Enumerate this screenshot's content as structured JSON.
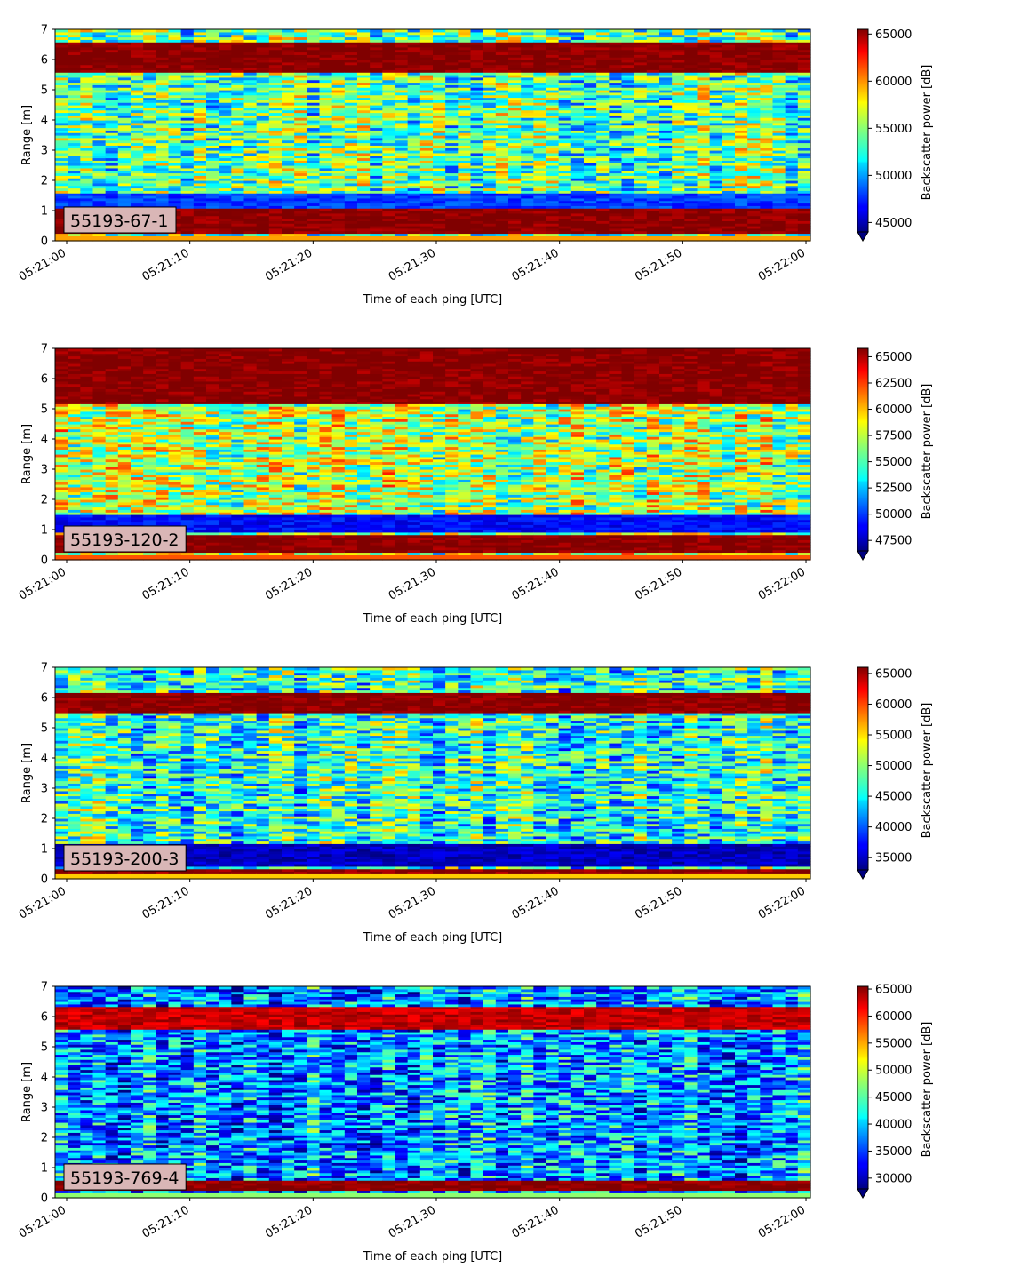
{
  "chart_data": [
    {
      "type": "heatmap",
      "annotation": "55193-67-1",
      "xlabel": "Time of each ping [UTC]",
      "ylabel": "Range [m]",
      "x_ticks": [
        "05:21:00",
        "05:21:10",
        "05:21:20",
        "05:21:30",
        "05:21:40",
        "05:21:50",
        "05:22:00"
      ],
      "y_ticks": [
        "0",
        "1",
        "2",
        "3",
        "4",
        "5",
        "6",
        "7"
      ],
      "ylim": [
        0,
        7
      ],
      "xlim": [
        "05:21:00",
        "05:22:00"
      ],
      "colorbar": {
        "label": "Backscatter power [dB]",
        "colormap": "jet",
        "vmin": 44000,
        "vmax": 65500,
        "ticks": [
          45000,
          50000,
          55000,
          60000,
          65000
        ],
        "tick_labels": [
          "45000",
          "50000",
          "55000",
          "60000",
          "65000"
        ],
        "extend": "min"
      },
      "features": [
        {
          "range": [
            0.25,
            1.05
          ],
          "level": 65500,
          "note": "strong near-field band"
        },
        {
          "range": [
            1.1,
            1.6
          ],
          "level": 48000,
          "note": "weak layer"
        },
        {
          "range": [
            5.6,
            6.6
          ],
          "level": 65500,
          "note": "strong surface band"
        }
      ],
      "background_level": 54000
    },
    {
      "type": "heatmap",
      "annotation": "55193-120-2",
      "xlabel": "Time of each ping [UTC]",
      "ylabel": "Range [m]",
      "x_ticks": [
        "05:21:00",
        "05:21:10",
        "05:21:20",
        "05:21:30",
        "05:21:40",
        "05:21:50",
        "05:22:00"
      ],
      "y_ticks": [
        "0",
        "1",
        "2",
        "3",
        "4",
        "5",
        "6",
        "7"
      ],
      "ylim": [
        0,
        7
      ],
      "xlim": [
        "05:21:00",
        "05:22:00"
      ],
      "colorbar": {
        "label": "Backscatter power [dB]",
        "colormap": "jet",
        "vmin": 46500,
        "vmax": 65800,
        "ticks": [
          47500,
          50000,
          52500,
          55000,
          57500,
          60000,
          62500,
          65000
        ],
        "tick_labels": [
          "47500",
          "50000",
          "52500",
          "55000",
          "57500",
          "60000",
          "62500",
          "65000"
        ],
        "extend": "min"
      },
      "features": [
        {
          "range": [
            0.25,
            0.8
          ],
          "level": 65800,
          "note": "strong near-field band"
        },
        {
          "range": [
            0.9,
            1.5
          ],
          "level": 49000,
          "note": "weak layer"
        },
        {
          "range": [
            5.2,
            7.0
          ],
          "level": 65800,
          "note": "strong surface band"
        }
      ],
      "background_level": 57000
    },
    {
      "type": "heatmap",
      "annotation": "55193-200-3",
      "xlabel": "Time of each ping [UTC]",
      "ylabel": "Range [m]",
      "x_ticks": [
        "05:21:00",
        "05:21:10",
        "05:21:20",
        "05:21:30",
        "05:21:40",
        "05:21:50",
        "05:22:00"
      ],
      "y_ticks": [
        "0",
        "1",
        "2",
        "3",
        "4",
        "5",
        "6",
        "7"
      ],
      "ylim": [
        0,
        7
      ],
      "xlim": [
        "05:21:00",
        "05:22:00"
      ],
      "colorbar": {
        "label": "Backscatter power [dB]",
        "colormap": "jet",
        "vmin": 33000,
        "vmax": 66000,
        "ticks": [
          35000,
          40000,
          45000,
          50000,
          55000,
          60000,
          65000
        ],
        "tick_labels": [
          "35000",
          "40000",
          "45000",
          "50000",
          "55000",
          "60000",
          "65000"
        ],
        "extend": "min"
      },
      "features": [
        {
          "range": [
            0.15,
            0.35
          ],
          "level": 66000,
          "note": "thin strong near-field band"
        },
        {
          "range": [
            0.4,
            1.2
          ],
          "level": 35000,
          "note": "weak layer"
        },
        {
          "range": [
            5.5,
            6.2
          ],
          "level": 66000,
          "note": "strong surface band"
        }
      ],
      "background_level": 47000
    },
    {
      "type": "heatmap",
      "annotation": "55193-769-4",
      "xlabel": "Time of each ping [UTC]",
      "ylabel": "Range [m]",
      "x_ticks": [
        "05:21:00",
        "05:21:10",
        "05:21:20",
        "05:21:30",
        "05:21:40",
        "05:21:50",
        "05:22:00"
      ],
      "y_ticks": [
        "0",
        "1",
        "2",
        "3",
        "4",
        "5",
        "6",
        "7"
      ],
      "ylim": [
        0,
        7
      ],
      "xlim": [
        "05:21:00",
        "05:22:00"
      ],
      "colorbar": {
        "label": "Backscatter power [dB]",
        "colormap": "jet",
        "vmin": 28000,
        "vmax": 65500,
        "ticks": [
          30000,
          35000,
          40000,
          45000,
          50000,
          55000,
          60000,
          65000
        ],
        "tick_labels": [
          "30000",
          "35000",
          "40000",
          "45000",
          "50000",
          "55000",
          "60000",
          "65000"
        ],
        "extend": "min"
      },
      "features": [
        {
          "range": [
            0.25,
            0.6
          ],
          "level": 65500,
          "note": "strong near-field band"
        },
        {
          "range": [
            5.6,
            6.3
          ],
          "level": 63000,
          "note": "strong surface band"
        }
      ],
      "background_level": 38000
    }
  ]
}
